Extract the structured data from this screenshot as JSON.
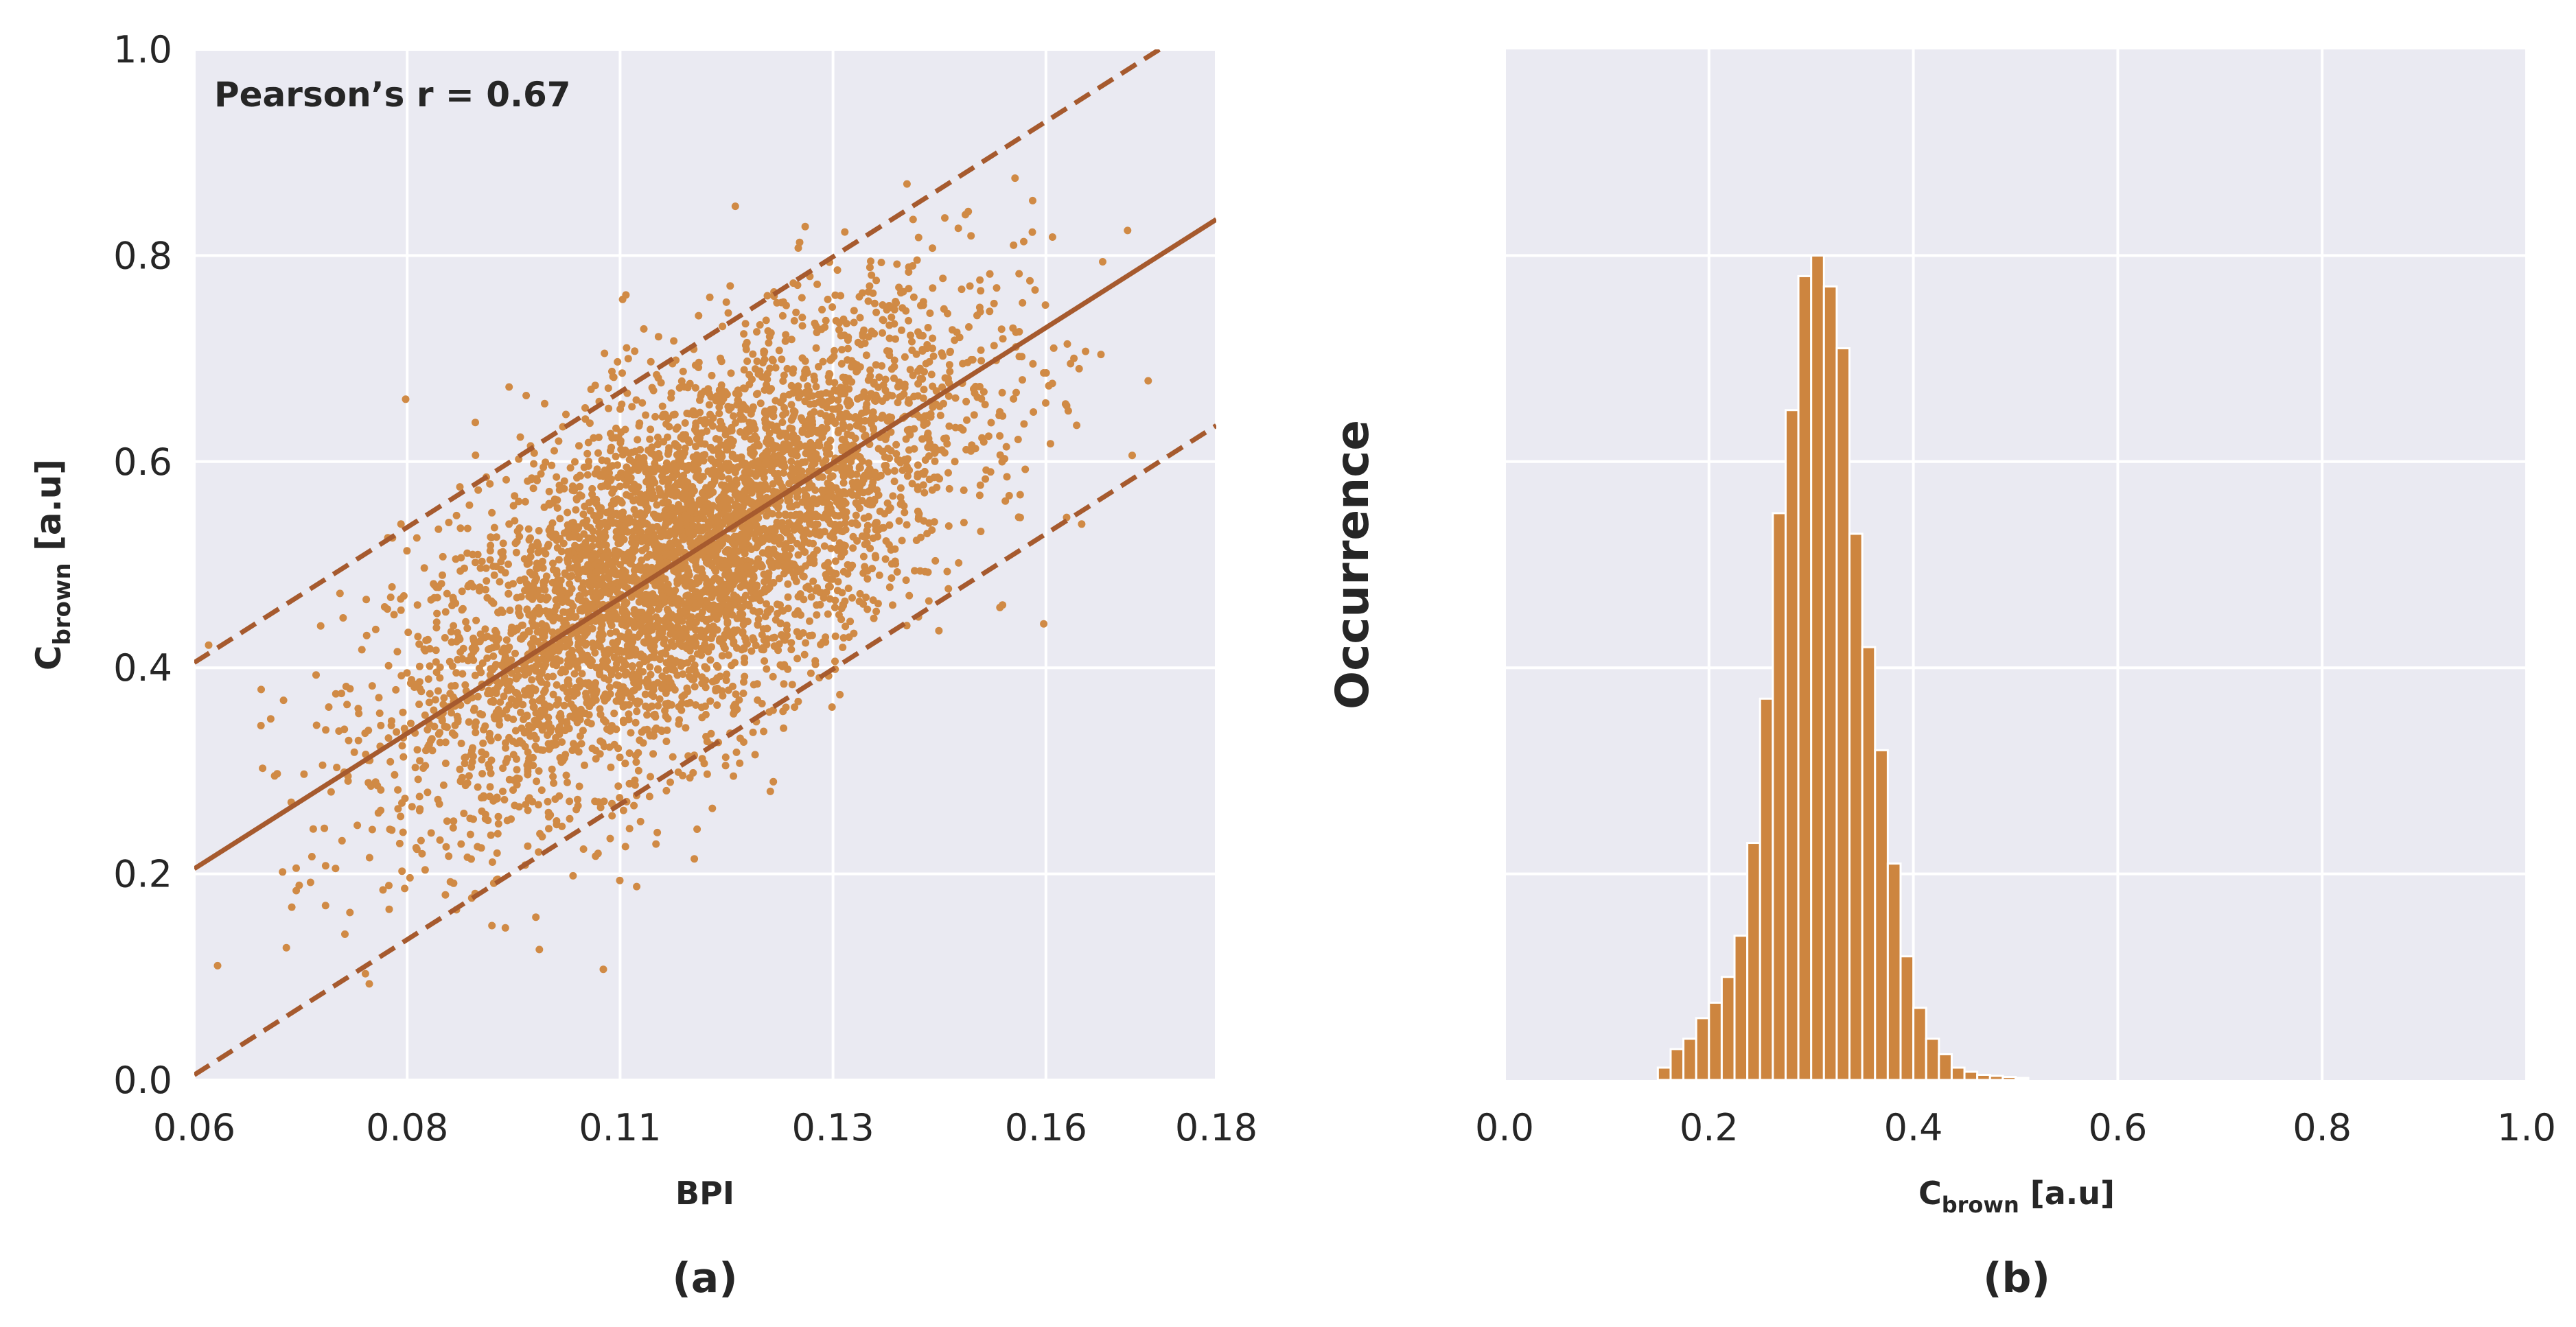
{
  "colors": {
    "panel_bg": "#eaeaf2",
    "grid": "#ffffff",
    "scatter": "#d08a45",
    "fit_line": "#a65a2e",
    "bar": "#cd853f",
    "text": "#262626"
  },
  "chart_data": [
    {
      "type": "scatter",
      "panel_caption": "(a)",
      "xlabel": "BPI",
      "ylabel_main": "C",
      "ylabel_sub": "brown",
      "ylabel_unit": " [a.u]",
      "annotation": "Pearson’s r = 0.67",
      "xlim": [
        0.06,
        0.18
      ],
      "ylim": [
        0.0,
        1.0
      ],
      "xticks": [
        0.06,
        0.085,
        0.11,
        0.135,
        0.16,
        0.18
      ],
      "xtick_labels": [
        "0.06",
        "0.08",
        "0.11",
        "0.13",
        "0.16",
        "0.18"
      ],
      "yticks": [
        0.0,
        0.2,
        0.4,
        0.6,
        0.8,
        1.0
      ],
      "ytick_labels": [
        "0.0",
        "0.2",
        "0.4",
        "0.6",
        "0.8",
        "1.0"
      ],
      "point_cloud": {
        "n_points": 4800,
        "x_mean": 0.1175,
        "x_sd": 0.0165,
        "y_mean": 0.505,
        "y_sd": 0.118,
        "correlation": 0.67
      },
      "fit_line": {
        "slope": 5.25,
        "intercept": -0.11
      },
      "band_offset": 0.2
    },
    {
      "type": "bar",
      "subtype": "histogram",
      "panel_caption": "(b)",
      "xlabel_main": "C",
      "xlabel_sub": "brown",
      "xlabel_unit": " [a.u]",
      "ylabel": "Occurrence",
      "xlim": [
        0.0,
        1.0
      ],
      "xticks": [
        0.0,
        0.2,
        0.4,
        0.6,
        0.8,
        1.0
      ],
      "xtick_labels": [
        "0.0",
        "0.2",
        "0.4",
        "0.6",
        "0.8",
        "1.0"
      ],
      "y_gridlines": [
        200,
        400,
        600,
        800
      ],
      "ylim": [
        0,
        1000
      ],
      "bin_start": 0.15,
      "bin_width": 0.0125,
      "counts": [
        12,
        30,
        40,
        60,
        75,
        100,
        140,
        230,
        370,
        550,
        650,
        780,
        800,
        770,
        710,
        530,
        420,
        320,
        210,
        120,
        70,
        40,
        25,
        12,
        8,
        5,
        4,
        3,
        2
      ]
    }
  ]
}
